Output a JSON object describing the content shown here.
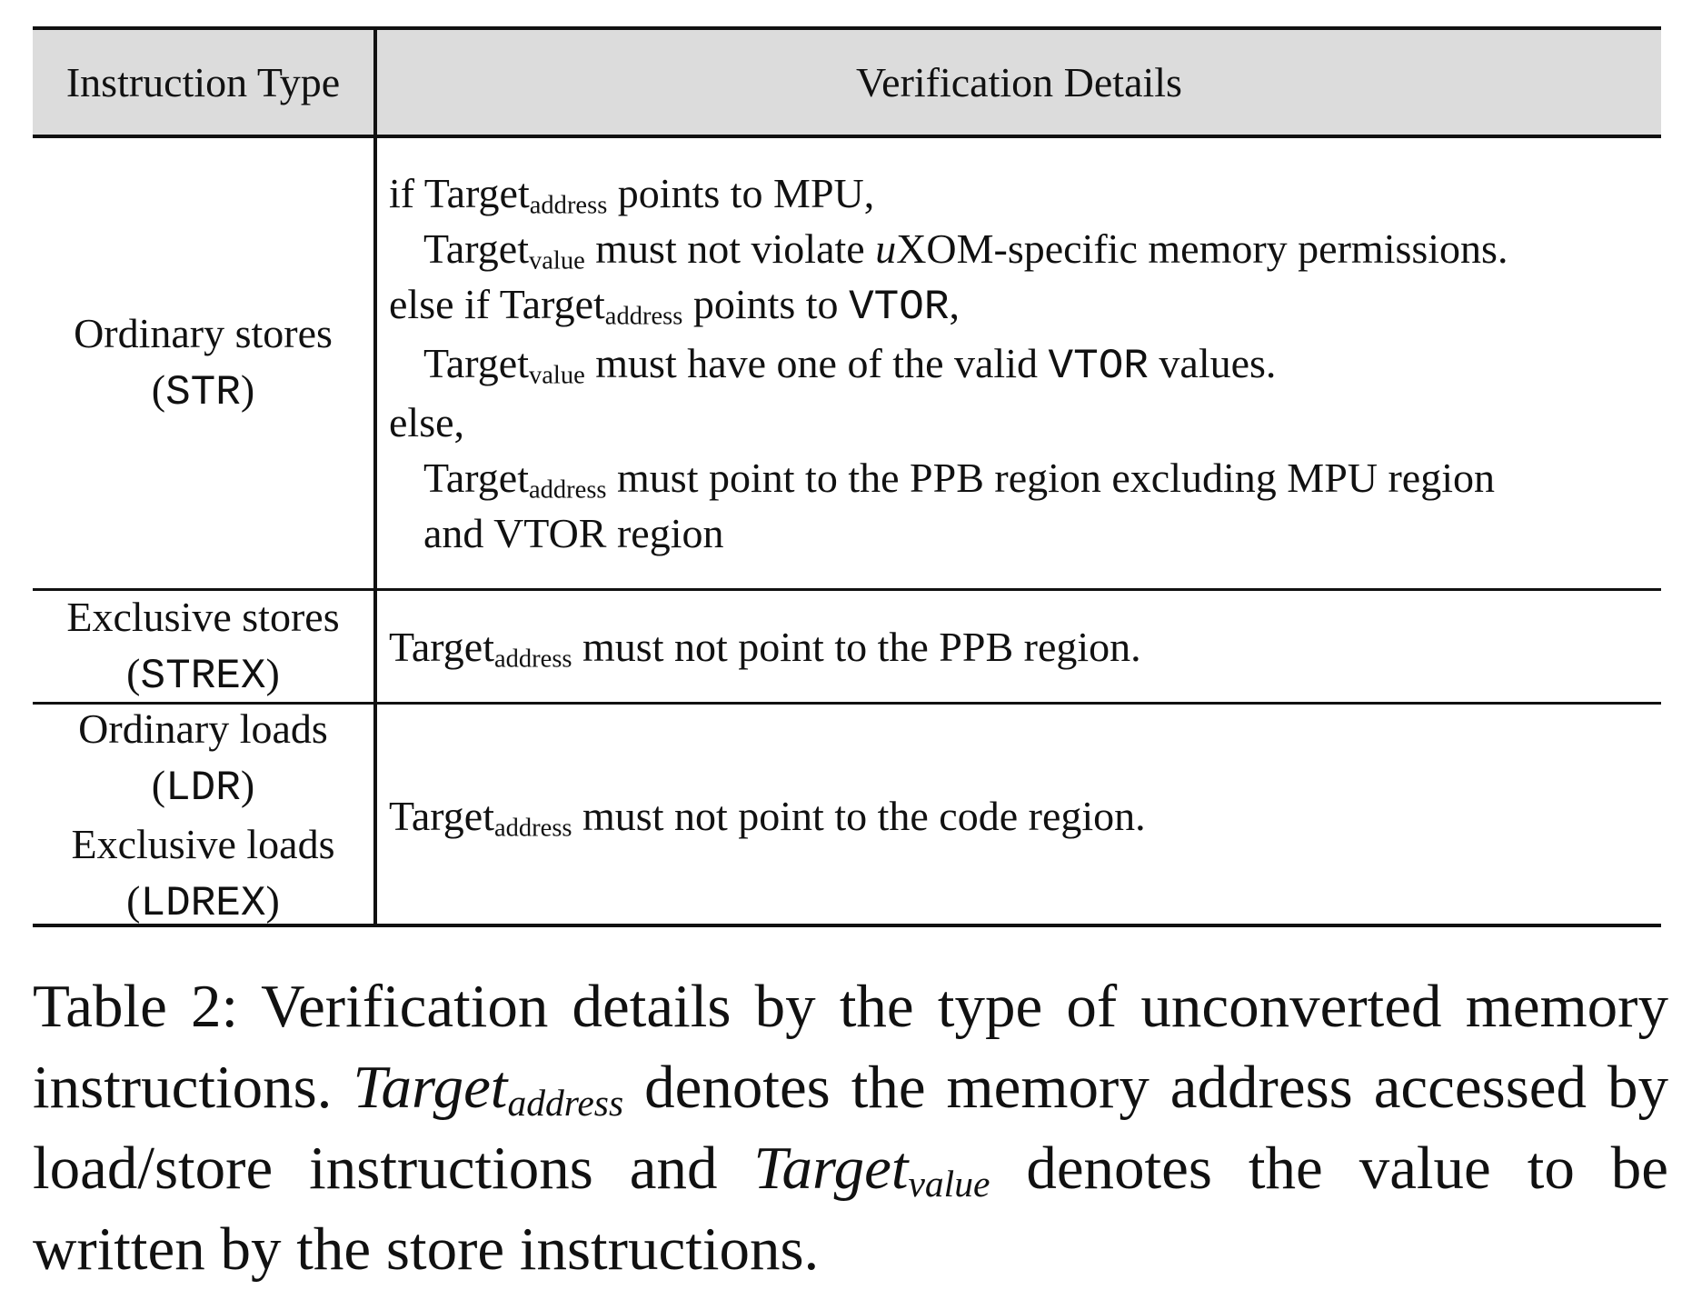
{
  "table": {
    "headers": [
      "Instruction Type",
      "Verification Details"
    ],
    "row1": {
      "type_label": "Ordinary stores",
      "type_code": "STR",
      "lines": {
        "l1_a": "if Target",
        "l1_sub": "address",
        "l1_b": " points to MPU,",
        "l2_a": "Target",
        "l2_sub": "value",
        "l2_b": " must not violate ",
        "l2_u": "u",
        "l2_c": "XOM-specific memory permissions.",
        "l3_a": "else if Target",
        "l3_sub": "address",
        "l3_b": " points to ",
        "l3_code": "VTOR",
        "l3_c": ",",
        "l4_a": "Target",
        "l4_sub": "value",
        "l4_b": " must have one of the valid ",
        "l4_code": "VTOR",
        "l4_c": " values.",
        "l5": "else,",
        "l6_a": "Target",
        "l6_sub": "address",
        "l6_b": " must point to the PPB region excluding MPU region",
        "l7": "and VTOR region"
      }
    },
    "row2": {
      "type_label": "Exclusive stores",
      "type_code": "STREX",
      "detail_a": "Target",
      "detail_sub": "address",
      "detail_b": " must not point to the PPB region."
    },
    "row3": {
      "type_label_1": "Ordinary loads",
      "type_code_1": "LDR",
      "type_label_2": "Exclusive loads",
      "type_code_2": "LDREX",
      "detail_a": "Target",
      "detail_sub": "address",
      "detail_b": " must not point to the code region."
    }
  },
  "caption": {
    "a": "Table 2: Verification details by the type of unconverted memory instructions. ",
    "it1": "Target",
    "it1_sub": "address",
    "b": " denotes the memory address accessed by load/store instructions and ",
    "it2": "Target",
    "it2_sub": "value",
    "c": " denotes the value to be written by the store instructions."
  }
}
